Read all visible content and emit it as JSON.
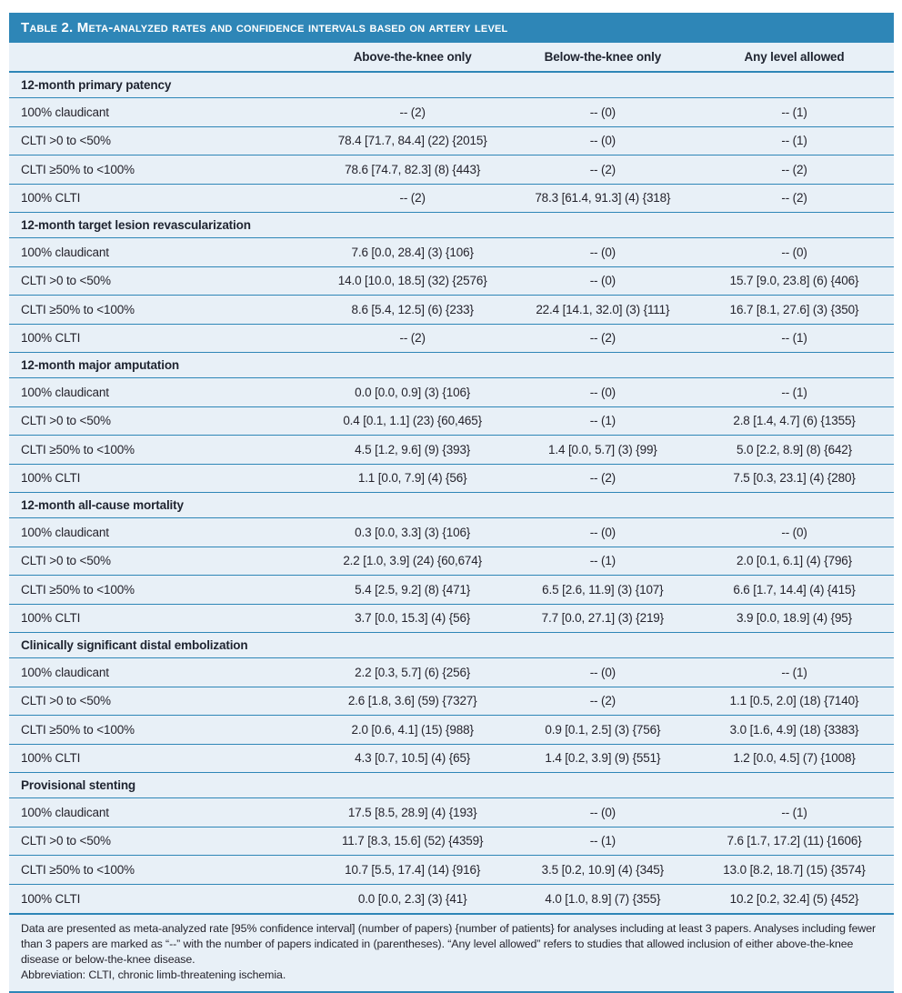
{
  "table": {
    "title": "Table 2. Meta-analyzed rates and confidence intervals based on artery level",
    "columns": [
      "",
      "Above-the-knee only",
      "Below-the-knee only",
      "Any level allowed"
    ],
    "sections": [
      {
        "header": "12-month primary patency",
        "rows": [
          {
            "label": "100% claudicant",
            "values": [
              "-- (2)",
              "-- (0)",
              "-- (1)"
            ]
          },
          {
            "label": "CLTI >0 to <50%",
            "values": [
              "78.4 [71.7, 84.4] (22) {2015}",
              "-- (0)",
              "-- (1)"
            ]
          },
          {
            "label": "CLTI ≥50% to <100%",
            "values": [
              "78.6 [74.7, 82.3] (8) {443}",
              "-- (2)",
              "-- (2)"
            ]
          },
          {
            "label": "100% CLTI",
            "values": [
              "-- (2)",
              "78.3 [61.4, 91.3] (4) {318}",
              "-- (2)"
            ]
          }
        ]
      },
      {
        "header": "12-month target lesion revascularization",
        "rows": [
          {
            "label": "100% claudicant",
            "values": [
              "7.6 [0.0, 28.4] (3) {106}",
              "-- (0)",
              "-- (0)"
            ]
          },
          {
            "label": "CLTI >0 to <50%",
            "values": [
              "14.0 [10.0, 18.5] (32) {2576}",
              "-- (0)",
              "15.7 [9.0, 23.8] (6) {406}"
            ]
          },
          {
            "label": "CLTI ≥50% to <100%",
            "values": [
              "8.6 [5.4, 12.5] (6) {233}",
              "22.4 [14.1, 32.0] (3) {111}",
              "16.7 [8.1, 27.6] (3) {350}"
            ]
          },
          {
            "label": "100% CLTI",
            "values": [
              "-- (2)",
              "-- (2)",
              "-- (1)"
            ]
          }
        ]
      },
      {
        "header": "12-month major amputation",
        "rows": [
          {
            "label": "100% claudicant",
            "values": [
              "0.0 [0.0, 0.9] (3) {106}",
              "-- (0)",
              "-- (1)"
            ]
          },
          {
            "label": "CLTI >0 to <50%",
            "values": [
              "0.4 [0.1, 1.1] (23) {60,465}",
              "-- (1)",
              "2.8 [1.4, 4.7] (6) {1355}"
            ]
          },
          {
            "label": "CLTI ≥50% to <100%",
            "values": [
              "4.5 [1.2, 9.6] (9) {393}",
              "1.4 [0.0, 5.7] (3) {99}",
              "5.0 [2.2, 8.9] (8) {642}"
            ]
          },
          {
            "label": "100% CLTI",
            "values": [
              "1.1 [0.0, 7.9] (4) {56}",
              "-- (2)",
              "7.5 [0.3, 23.1] (4) {280}"
            ]
          }
        ]
      },
      {
        "header": "12-month all-cause mortality",
        "rows": [
          {
            "label": "100% claudicant",
            "values": [
              "0.3 [0.0, 3.3] (3) {106}",
              "-- (0)",
              "-- (0)"
            ]
          },
          {
            "label": "CLTI >0 to <50%",
            "values": [
              "2.2 [1.0, 3.9] (24) {60,674}",
              "-- (1)",
              "2.0 [0.1, 6.1] (4) {796}"
            ]
          },
          {
            "label": "CLTI ≥50% to <100%",
            "values": [
              "5.4 [2.5, 9.2] (8) {471}",
              "6.5 [2.6, 11.9] (3) {107}",
              "6.6 [1.7, 14.4] (4) {415}"
            ]
          },
          {
            "label": "100% CLTI",
            "values": [
              "3.7 [0.0, 15.3] (4) {56}",
              "7.7 [0.0, 27.1] (3) {219}",
              "3.9 [0.0, 18.9] (4) {95}"
            ]
          }
        ]
      },
      {
        "header": "Clinically significant distal embolization",
        "rows": [
          {
            "label": "100% claudicant",
            "values": [
              "2.2 [0.3, 5.7] (6) {256}",
              "-- (0)",
              "-- (1)"
            ]
          },
          {
            "label": "CLTI >0 to <50%",
            "values": [
              "2.6 [1.8, 3.6] (59) {7327}",
              "-- (2)",
              "1.1 [0.5, 2.0] (18) {7140}"
            ]
          },
          {
            "label": "CLTI ≥50% to <100%",
            "values": [
              "2.0 [0.6, 4.1] (15) {988}",
              "0.9 [0.1, 2.5] (3) {756}",
              "3.0 [1.6, 4.9] (18) {3383}"
            ]
          },
          {
            "label": "100% CLTI",
            "values": [
              "4.3 [0.7, 10.5] (4) {65}",
              "1.4 [0.2, 3.9] (9) {551}",
              "1.2 [0.0, 4.5] (7) {1008}"
            ]
          }
        ]
      },
      {
        "header": "Provisional stenting",
        "rows": [
          {
            "label": "100% claudicant",
            "values": [
              "17.5 [8.5, 28.9] (4) {193}",
              "-- (0)",
              "-- (1)"
            ]
          },
          {
            "label": "CLTI >0 to <50%",
            "values": [
              "11.7 [8.3, 15.6] (52) {4359}",
              "-- (1)",
              "7.6 [1.7, 17.2] (11) {1606}"
            ]
          },
          {
            "label": "CLTI ≥50% to <100%",
            "values": [
              "10.7 [5.5, 17.4] (14) {916}",
              "3.5 [0.2, 10.9] (4) {345}",
              "13.0 [8.2, 18.7] (15) {3574}"
            ]
          },
          {
            "label": "100% CLTI",
            "values": [
              "0.0 [0.0, 2.3] (3) {41}",
              "4.0 [1.0, 8.9] (7) {355}",
              "10.2 [0.2, 32.4] (5) {452}"
            ]
          }
        ]
      }
    ],
    "footnotes": [
      "Data are presented as meta-analyzed rate [95% confidence interval] (number of papers) {number of patients} for analyses including at least 3 papers. Analyses including fewer than 3 papers are marked as “--” with the number of papers indicated in (parentheses). “Any level allowed” refers to studies that allowed inclusion of either above-the-knee disease or below-the-knee disease.",
      "Abbreviation: CLTI, chronic limb-threatening ischemia."
    ],
    "colors": {
      "header_bar": "#2e86b7",
      "row_background": "#e8f0f7",
      "rule": "#2e86b7",
      "text": "#25232c"
    }
  }
}
